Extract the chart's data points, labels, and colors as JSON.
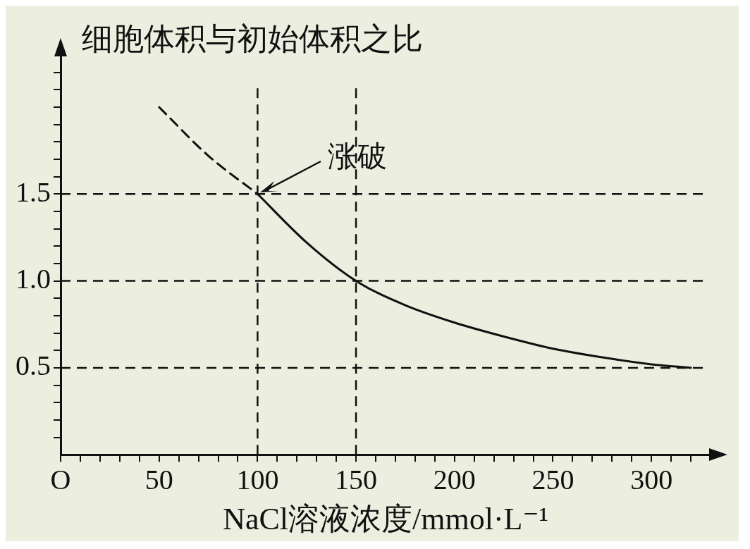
{
  "chart_data": {
    "type": "line",
    "ylabel": "细胞体积与初始体积之比",
    "xlabel": "NaCl溶液浓度/mmol·L⁻¹",
    "xlim": [
      0,
      330
    ],
    "xticks": [
      {
        "value": 0,
        "label": "O"
      },
      {
        "value": 10,
        "label": null
      },
      {
        "value": 20,
        "label": null
      },
      {
        "value": 30,
        "label": null
      },
      {
        "value": 40,
        "label": null
      },
      50,
      {
        "value": 60,
        "label": null
      },
      {
        "value": 70,
        "label": null
      },
      {
        "value": 80,
        "label": null
      },
      {
        "value": 90,
        "label": null
      },
      100,
      {
        "value": 110,
        "label": null
      },
      {
        "value": 120,
        "label": null
      },
      {
        "value": 130,
        "label": null
      },
      {
        "value": 140,
        "label": null
      },
      150,
      {
        "value": 160,
        "label": null
      },
      {
        "value": 170,
        "label": null
      },
      {
        "value": 180,
        "label": null
      },
      {
        "value": 190,
        "label": null
      },
      200,
      {
        "value": 210,
        "label": null
      },
      {
        "value": 220,
        "label": null
      },
      {
        "value": 230,
        "label": null
      },
      {
        "value": 240,
        "label": null
      },
      250,
      {
        "value": 260,
        "label": null
      },
      {
        "value": 270,
        "label": null
      },
      {
        "value": 280,
        "label": null
      },
      {
        "value": 290,
        "label": null
      },
      300,
      {
        "value": 310,
        "label": null
      },
      {
        "value": 320,
        "label": null
      }
    ],
    "ylim": [
      0,
      2.3
    ],
    "yticks": [
      {
        "value": 0.1,
        "label": null
      },
      {
        "value": 0.2,
        "label": null
      },
      {
        "value": 0.3,
        "label": null
      },
      {
        "value": 0.4,
        "label": null
      },
      0.5,
      {
        "value": 0.6,
        "label": null
      },
      {
        "value": 0.7,
        "label": null
      },
      {
        "value": 0.8,
        "label": null
      },
      {
        "value": 0.9,
        "label": null
      },
      {
        "value": 1,
        "label": "1.0"
      },
      {
        "value": 1.1,
        "label": null
      },
      {
        "value": 1.2,
        "label": null
      },
      {
        "value": 1.3,
        "label": null
      },
      {
        "value": 1.4,
        "label": null
      },
      1.5,
      {
        "value": 1.6,
        "label": null
      },
      {
        "value": 1.7,
        "label": null
      },
      {
        "value": 1.8,
        "label": null
      },
      {
        "value": 1.9,
        "label": null
      },
      {
        "value": 2,
        "label": null
      },
      {
        "value": 2.1,
        "label": null
      },
      {
        "value": 2.2,
        "label": null
      }
    ],
    "marker": "none",
    "series": [
      {
        "type": "line",
        "color": "#111111",
        "line_style": "dashed",
        "x": [
          50,
          75,
          100
        ],
        "values": [
          2.0,
          1.72,
          1.5
        ]
      },
      {
        "type": "line",
        "color": "#111111",
        "line_style": "solid",
        "x": [
          100,
          125,
          150,
          175,
          200,
          225,
          250,
          275,
          300,
          320
        ],
        "values": [
          1.5,
          1.22,
          1.0,
          0.86,
          0.76,
          0.68,
          0.61,
          0.56,
          0.52,
          0.5
        ]
      }
    ],
    "ref_lines": [
      {
        "axis": "y",
        "value": 1.5,
        "line_style": "dashed",
        "color": "#111111"
      },
      {
        "axis": "y",
        "value": 1,
        "line_style": "dashed",
        "color": "#111111"
      },
      {
        "axis": "y",
        "value": 0.5,
        "line_style": "dashed",
        "color": "#111111"
      },
      {
        "axis": "x",
        "value": 100,
        "line_style": "dashed",
        "color": "#111111"
      },
      {
        "axis": "x",
        "value": 150,
        "line_style": "dashed",
        "color": "#111111"
      }
    ],
    "annotations": [
      {
        "text": "涨破",
        "x": 100,
        "y": 1.5
      }
    ]
  }
}
